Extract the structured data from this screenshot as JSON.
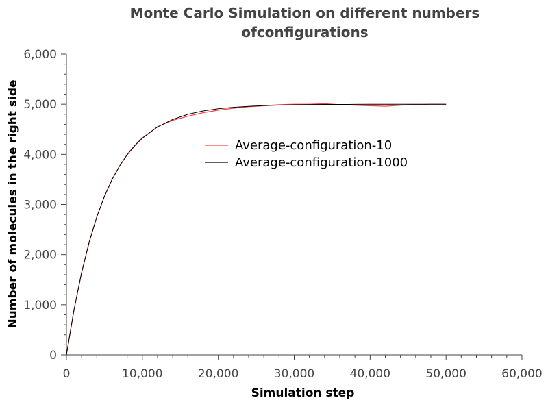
{
  "chart_data": {
    "type": "line",
    "title_lines": [
      "Monte Carlo Simulation on different numbers",
      "ofconfigurations"
    ],
    "xlabel": "Simulation step",
    "ylabel": "Number of molecules in the right side",
    "xlim": [
      0,
      60000
    ],
    "ylim": [
      0,
      6000
    ],
    "x_ticks": [
      0,
      10000,
      20000,
      30000,
      40000,
      50000,
      60000
    ],
    "x_tick_labels": [
      "0",
      "10,000",
      "20,000",
      "30,000",
      "40,000",
      "50,000",
      "60,000"
    ],
    "y_ticks": [
      0,
      1000,
      2000,
      3000,
      4000,
      5000,
      6000
    ],
    "y_tick_labels": [
      "0",
      "1,000",
      "2,000",
      "3,000",
      "4,000",
      "5,000",
      "6,000"
    ],
    "grid": false,
    "legend_position": "center",
    "series": [
      {
        "name": "Average-configuration-10",
        "color": "#ff4040",
        "x": [
          0,
          1000,
          2000,
          3000,
          4000,
          5000,
          6000,
          7000,
          8000,
          9000,
          10000,
          12000,
          14000,
          16000,
          18000,
          20000,
          22000,
          24000,
          26000,
          28000,
          30000,
          32000,
          34000,
          36000,
          38000,
          40000,
          42000,
          44000,
          46000,
          48000,
          50000
        ],
        "y": [
          0,
          900,
          1640,
          2250,
          2750,
          3160,
          3500,
          3770,
          4000,
          4180,
          4330,
          4550,
          4680,
          4760,
          4830,
          4880,
          4920,
          4950,
          4970,
          4990,
          5000,
          5000,
          5010,
          4990,
          4980,
          4970,
          4960,
          4980,
          4990,
          5000,
          5000
        ]
      },
      {
        "name": "Average-configuration-1000",
        "color": "#000000",
        "x": [
          0,
          1000,
          2000,
          3000,
          4000,
          5000,
          6000,
          7000,
          8000,
          9000,
          10000,
          12000,
          14000,
          16000,
          18000,
          20000,
          22000,
          24000,
          26000,
          28000,
          30000,
          32000,
          34000,
          36000,
          38000,
          40000,
          42000,
          44000,
          46000,
          48000,
          50000
        ],
        "y": [
          0,
          906,
          1648,
          2255,
          2752,
          3161,
          3494,
          3768,
          3992,
          4175,
          4325,
          4548,
          4697,
          4798,
          4865,
          4909,
          4939,
          4959,
          4973,
          4982,
          4988,
          4992,
          4995,
          4996,
          4997,
          4998,
          4999,
          4999,
          5000,
          5000,
          5000
        ]
      }
    ]
  }
}
